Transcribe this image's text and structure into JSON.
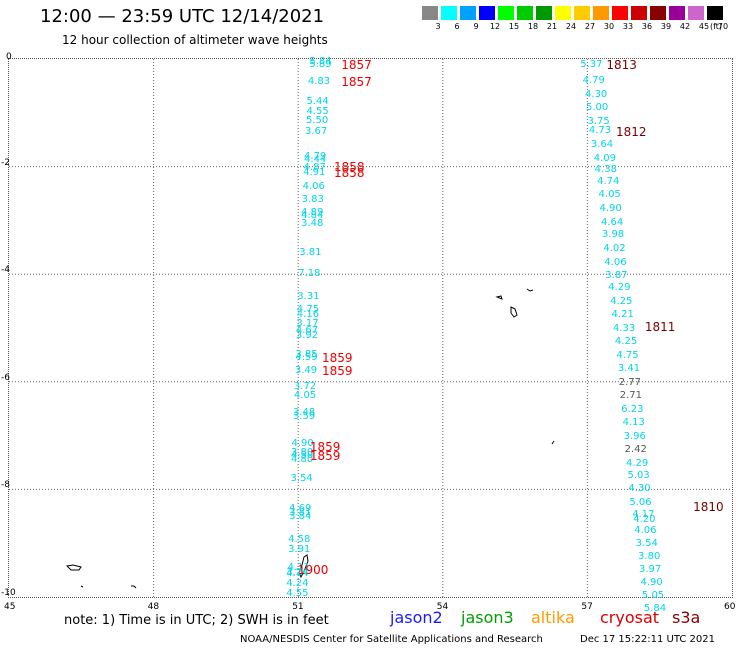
{
  "header": {
    "title": "12:00 — 23:59 UTC 12/14/2021",
    "subtitle": "12 hour collection of altimeter wave heights"
  },
  "legend": {
    "unit": "(ft)",
    "bins": [
      {
        "label": "3",
        "color": "#888888"
      },
      {
        "label": "6",
        "color": "#00ffff"
      },
      {
        "label": "9",
        "color": "#00a0ff"
      },
      {
        "label": "12",
        "color": "#0000ff"
      },
      {
        "label": "15",
        "color": "#00ff00"
      },
      {
        "label": "18",
        "color": "#00cc00"
      },
      {
        "label": "21",
        "color": "#009900"
      },
      {
        "label": "24",
        "color": "#ffff00"
      },
      {
        "label": "27",
        "color": "#ffcc00"
      },
      {
        "label": "30",
        "color": "#ff9900"
      },
      {
        "label": "33",
        "color": "#ff0000"
      },
      {
        "label": "36",
        "color": "#cc0000"
      },
      {
        "label": "39",
        "color": "#880000"
      },
      {
        "label": "42",
        "color": "#990099"
      },
      {
        "label": "45",
        "color": "#cc66cc"
      },
      {
        "label": "70",
        "color": "#000000"
      }
    ]
  },
  "axes": {
    "x_ticks": [
      "45",
      "48",
      "51",
      "54",
      "57",
      "60"
    ],
    "y_ticks": [
      "0",
      "-2",
      "-4",
      "-6",
      "-8",
      "-10"
    ]
  },
  "track_left": {
    "color": "#00d6e6",
    "values": [
      {
        "v": "5.84",
        "lon": 51.48,
        "lat": -0.05
      },
      {
        "v": "5.89",
        "lon": 51.48,
        "lat": -0.12
      },
      {
        "v": "4.83",
        "lon": 51.45,
        "lat": -0.42
      },
      {
        "v": "5.44",
        "lon": 51.42,
        "lat": -0.8
      },
      {
        "v": "4.55",
        "lon": 51.42,
        "lat": -0.98
      },
      {
        "v": "5.50",
        "lon": 51.41,
        "lat": -1.16
      },
      {
        "v": "3.67",
        "lon": 51.39,
        "lat": -1.36
      },
      {
        "v": "4.79",
        "lon": 51.37,
        "lat": -1.82
      },
      {
        "v": "4.44",
        "lon": 51.37,
        "lat": -1.88
      },
      {
        "v": "4.87",
        "lon": 51.36,
        "lat": -2.02
      },
      {
        "v": "4.91",
        "lon": 51.35,
        "lat": -2.12
      },
      {
        "v": "4.06",
        "lon": 51.34,
        "lat": -2.38
      },
      {
        "v": "3.83",
        "lon": 51.32,
        "lat": -2.62
      },
      {
        "v": "4.89",
        "lon": 51.31,
        "lat": -2.86
      },
      {
        "v": "4.84",
        "lon": 51.31,
        "lat": -2.92
      },
      {
        "v": "3.48",
        "lon": 51.31,
        "lat": -3.06
      },
      {
        "v": "3.81",
        "lon": 51.27,
        "lat": -3.6
      },
      {
        "v": "7.18",
        "lon": 51.25,
        "lat": -4.0
      },
      {
        "v": "3.31",
        "lon": 51.23,
        "lat": -4.42
      },
      {
        "v": "4.75",
        "lon": 51.22,
        "lat": -4.66
      },
      {
        "v": "4.16",
        "lon": 51.22,
        "lat": -4.76
      },
      {
        "v": "3.17",
        "lon": 51.21,
        "lat": -4.92
      },
      {
        "v": "4.67",
        "lon": 51.2,
        "lat": -5.06
      },
      {
        "v": "3.92",
        "lon": 51.2,
        "lat": -5.14
      },
      {
        "v": "3.85",
        "lon": 51.19,
        "lat": -5.5
      },
      {
        "v": "4.59",
        "lon": 51.19,
        "lat": -5.56
      },
      {
        "v": "3.49",
        "lon": 51.18,
        "lat": -5.8
      },
      {
        "v": "3.72",
        "lon": 51.16,
        "lat": -6.1
      },
      {
        "v": "4.05",
        "lon": 51.16,
        "lat": -6.26
      },
      {
        "v": "3.48",
        "lon": 51.14,
        "lat": -6.58
      },
      {
        "v": "3.59",
        "lon": 51.14,
        "lat": -6.66
      },
      {
        "v": "4.90",
        "lon": 51.11,
        "lat": -7.16
      },
      {
        "v": "3.80",
        "lon": 51.1,
        "lat": -7.32
      },
      {
        "v": "4.50",
        "lon": 51.1,
        "lat": -7.38
      },
      {
        "v": "4.80",
        "lon": 51.1,
        "lat": -7.46
      },
      {
        "v": "3.54",
        "lon": 51.09,
        "lat": -7.8
      },
      {
        "v": "4.69",
        "lon": 51.06,
        "lat": -8.36
      },
      {
        "v": "3.81",
        "lon": 51.06,
        "lat": -8.44
      },
      {
        "v": "3.84",
        "lon": 51.06,
        "lat": -8.52
      },
      {
        "v": "4.58",
        "lon": 51.04,
        "lat": -8.94
      },
      {
        "v": "3.91",
        "lon": 51.04,
        "lat": -9.12
      },
      {
        "v": "4.11",
        "lon": 51.03,
        "lat": -9.46
      },
      {
        "v": "3.24",
        "lon": 51.0,
        "lat": -9.56
      },
      {
        "v": "4.74",
        "lon": 51.0,
        "lat": -9.58
      },
      {
        "v": "4.24",
        "lon": 51.0,
        "lat": -9.76
      },
      {
        "v": "4.55",
        "lon": 51.0,
        "lat": -9.94
      }
    ]
  },
  "track_right": {
    "color": "#00d6e6",
    "values": [
      {
        "v": "5.37",
        "lon": 57.1,
        "lat": -0.12,
        "gray": false
      },
      {
        "v": "4.79",
        "lon": 57.15,
        "lat": -0.4,
        "gray": false
      },
      {
        "v": "4.30",
        "lon": 57.2,
        "lat": -0.66,
        "gray": false
      },
      {
        "v": "5.00",
        "lon": 57.22,
        "lat": -0.92,
        "gray": false
      },
      {
        "v": "3.75",
        "lon": 57.25,
        "lat": -1.18,
        "gray": false
      },
      {
        "v": "4.73",
        "lon": 57.28,
        "lat": -1.34,
        "gray": false
      },
      {
        "v": "3.64",
        "lon": 57.32,
        "lat": -1.6,
        "gray": false
      },
      {
        "v": "4.09",
        "lon": 57.38,
        "lat": -1.86,
        "gray": false
      },
      {
        "v": "4.38",
        "lon": 57.4,
        "lat": -2.06,
        "gray": false
      },
      {
        "v": "4.74",
        "lon": 57.45,
        "lat": -2.28,
        "gray": false
      },
      {
        "v": "4.05",
        "lon": 57.48,
        "lat": -2.52,
        "gray": false
      },
      {
        "v": "4.90",
        "lon": 57.5,
        "lat": -2.78,
        "gray": false
      },
      {
        "v": "4.64",
        "lon": 57.53,
        "lat": -3.04,
        "gray": false
      },
      {
        "v": "3.98",
        "lon": 57.55,
        "lat": -3.28,
        "gray": false
      },
      {
        "v": "4.02",
        "lon": 57.58,
        "lat": -3.54,
        "gray": false
      },
      {
        "v": "4.06",
        "lon": 57.6,
        "lat": -3.8,
        "gray": false
      },
      {
        "v": "3.87",
        "lon": 57.62,
        "lat": -4.04,
        "gray": false
      },
      {
        "v": "4.29",
        "lon": 57.68,
        "lat": -4.26,
        "gray": false
      },
      {
        "v": "4.25",
        "lon": 57.72,
        "lat": -4.52,
        "gray": false
      },
      {
        "v": "4.21",
        "lon": 57.75,
        "lat": -4.76,
        "gray": false
      },
      {
        "v": "4.33",
        "lon": 57.78,
        "lat": -5.02,
        "gray": false
      },
      {
        "v": "4.25",
        "lon": 57.82,
        "lat": -5.26,
        "gray": false
      },
      {
        "v": "4.75",
        "lon": 57.85,
        "lat": -5.52,
        "gray": false
      },
      {
        "v": "3.41",
        "lon": 57.88,
        "lat": -5.76,
        "gray": false
      },
      {
        "v": "2.77",
        "lon": 57.9,
        "lat": -6.02,
        "gray": true
      },
      {
        "v": "2.71",
        "lon": 57.92,
        "lat": -6.26,
        "gray": true
      },
      {
        "v": "6.23",
        "lon": 57.95,
        "lat": -6.52,
        "gray": false
      },
      {
        "v": "4.13",
        "lon": 57.98,
        "lat": -6.76,
        "gray": false
      },
      {
        "v": "3.96",
        "lon": 58.0,
        "lat": -7.02,
        "gray": false
      },
      {
        "v": "2.42",
        "lon": 58.02,
        "lat": -7.26,
        "gray": true
      },
      {
        "v": "4.29",
        "lon": 58.05,
        "lat": -7.52,
        "gray": false
      },
      {
        "v": "5.03",
        "lon": 58.08,
        "lat": -7.76,
        "gray": false
      },
      {
        "v": "4.30",
        "lon": 58.1,
        "lat": -8.0,
        "gray": false
      },
      {
        "v": "5.06",
        "lon": 58.12,
        "lat": -8.26,
        "gray": false
      },
      {
        "v": "4.17",
        "lon": 58.18,
        "lat": -8.48,
        "gray": false
      },
      {
        "v": "4.20",
        "lon": 58.2,
        "lat": -8.56,
        "gray": false
      },
      {
        "v": "4.06",
        "lon": 58.22,
        "lat": -8.78,
        "gray": false
      },
      {
        "v": "3.54",
        "lon": 58.25,
        "lat": -9.02,
        "gray": false
      },
      {
        "v": "3.80",
        "lon": 58.3,
        "lat": -9.26,
        "gray": false
      },
      {
        "v": "3.97",
        "lon": 58.32,
        "lat": -9.5,
        "gray": false
      },
      {
        "v": "4.90",
        "lon": 58.35,
        "lat": -9.74,
        "gray": false
      },
      {
        "v": "5.05",
        "lon": 58.38,
        "lat": -9.98,
        "gray": false
      },
      {
        "v": "5.84",
        "lon": 58.42,
        "lat": -10.22,
        "gray": false
      }
    ]
  },
  "time_labels": [
    {
      "t": "1857",
      "lon": 52.1,
      "lat": -0.12,
      "style": "red"
    },
    {
      "t": "1857",
      "lon": 52.1,
      "lat": -0.42,
      "style": "red"
    },
    {
      "t": "1858",
      "lon": 51.95,
      "lat": -2.0,
      "style": "red"
    },
    {
      "t": "1858",
      "lon": 51.95,
      "lat": -2.12,
      "style": "red"
    },
    {
      "t": "1859",
      "lon": 51.7,
      "lat": -5.56,
      "style": "red"
    },
    {
      "t": "1859",
      "lon": 51.7,
      "lat": -5.8,
      "style": "red"
    },
    {
      "t": "1859",
      "lon": 51.45,
      "lat": -7.22,
      "style": "red"
    },
    {
      "t": "1859",
      "lon": 51.45,
      "lat": -7.38,
      "style": "red"
    },
    {
      "t": "1900",
      "lon": 51.2,
      "lat": -9.5,
      "style": "red"
    },
    {
      "t": "1813",
      "lon": 57.6,
      "lat": -0.12,
      "style": "dark"
    },
    {
      "t": "1812",
      "lon": 57.8,
      "lat": -1.36,
      "style": "dark"
    },
    {
      "t": "1811",
      "lon": 58.4,
      "lat": -4.98,
      "style": "dark"
    },
    {
      "t": "1810",
      "lon": 59.4,
      "lat": -8.32,
      "style": "dark"
    }
  ],
  "footer": {
    "note": "note:  1) Time is in UTC; 2) SWH is in feet",
    "satellites": [
      {
        "name": "jason2",
        "color": "#1a1aff"
      },
      {
        "name": "jason3",
        "color": "#00a000"
      },
      {
        "name": "altika",
        "color": "#ff9900"
      },
      {
        "name": "cryosat",
        "color": "#dd0000"
      },
      {
        "name": "s3a",
        "color": "#880000"
      }
    ],
    "credit": "NOAA/NESDIS Center for Satellite Applications and Research",
    "timestamp": "Dec 17 15:22:11 UTC 2021"
  }
}
